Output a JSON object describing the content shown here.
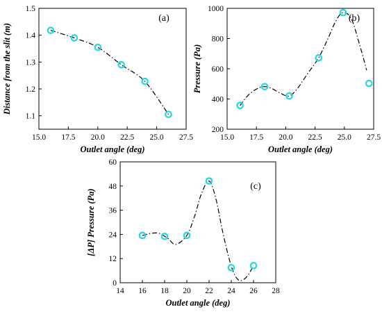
{
  "colors": {
    "marker": "#27d6e0",
    "line": "#000000"
  },
  "chart_data": [
    {
      "type": "scatter",
      "panel_label": "(a)",
      "xlabel": "Outlet angle (deg)",
      "ylabel": "Distance from the slit (m)",
      "xlim": [
        15.0,
        27.5
      ],
      "ylim": [
        1.05,
        1.5
      ],
      "xticks": [
        15.0,
        17.5,
        20.0,
        22.5,
        25.0,
        27.5
      ],
      "xtick_labels": [
        "15.0",
        "17.5",
        "20.0",
        "22.5",
        "25.0",
        "27.5"
      ],
      "yticks": [
        1.1,
        1.2,
        1.3,
        1.4,
        1.5
      ],
      "ytick_labels": [
        "1.1",
        "1.2",
        "1.3",
        "1.4",
        "1.5"
      ],
      "x": [
        16,
        18,
        20,
        22,
        24,
        26
      ],
      "y": [
        1.418,
        1.39,
        1.355,
        1.29,
        1.228,
        1.105
      ],
      "fit_line": {
        "x": [
          16,
          18,
          20,
          22,
          24,
          26
        ],
        "y": [
          1.418,
          1.39,
          1.355,
          1.29,
          1.228,
          1.105
        ]
      }
    },
    {
      "type": "scatter",
      "panel_label": "(b)",
      "xlabel": "Outlet angle (deg)",
      "ylabel": "Pressure (Pa)",
      "xlim": [
        15.0,
        27.5
      ],
      "ylim": [
        200,
        1000
      ],
      "xticks": [
        15.0,
        17.5,
        20.0,
        22.5,
        25.0,
        27.5
      ],
      "xtick_labels": [
        "15.0",
        "17.5",
        "20.0",
        "22.5",
        "25.0",
        "27.5"
      ],
      "yticks": [
        200,
        400,
        600,
        800,
        1000
      ],
      "ytick_labels": [
        "200",
        "400",
        "600",
        "800",
        "1000"
      ],
      "x": [
        16.1,
        18.2,
        20.3,
        22.8,
        24.9,
        27.1
      ],
      "y": [
        357,
        482,
        420,
        672,
        972,
        503
      ],
      "fit_line": {
        "x": [
          16.1,
          16.8,
          17.6,
          18.2,
          18.8,
          19.5,
          20.3,
          21.0,
          21.8,
          22.8,
          23.6,
          24.3,
          24.9,
          25.6,
          26.3,
          26.9
        ],
        "y": [
          357,
          425,
          470,
          482,
          470,
          440,
          420,
          470,
          560,
          672,
          800,
          920,
          972,
          930,
          760,
          590
        ]
      }
    },
    {
      "type": "scatter",
      "panel_label": "(c)",
      "xlabel": "Outlet angle (deg)",
      "ylabel": "[ΔP] Pressure (Pa)",
      "xlim": [
        14,
        28
      ],
      "ylim": [
        0,
        60
      ],
      "xticks": [
        14,
        16,
        18,
        20,
        22,
        24,
        26,
        28
      ],
      "xtick_labels": [
        "14",
        "16",
        "18",
        "20",
        "22",
        "24",
        "26",
        "28"
      ],
      "yticks": [
        0,
        12,
        24,
        36,
        48,
        60
      ],
      "ytick_labels": [
        "0",
        "12",
        "24",
        "36",
        "48",
        "60"
      ],
      "x": [
        16,
        18,
        20,
        22,
        24,
        26
      ],
      "y": [
        23.5,
        23,
        23.5,
        50.5,
        7.5,
        8.5
      ],
      "fit_line": {
        "x": [
          16,
          16.8,
          17.5,
          18.3,
          19.0,
          20.0,
          20.7,
          21.3,
          22.0,
          22.6,
          23.2,
          23.8,
          24.3,
          24.8,
          25.4,
          26
        ],
        "y": [
          23.5,
          24.5,
          24.5,
          22,
          19,
          23.5,
          33,
          44,
          50.5,
          42,
          26,
          12,
          4,
          1,
          3,
          8.5
        ]
      }
    }
  ]
}
